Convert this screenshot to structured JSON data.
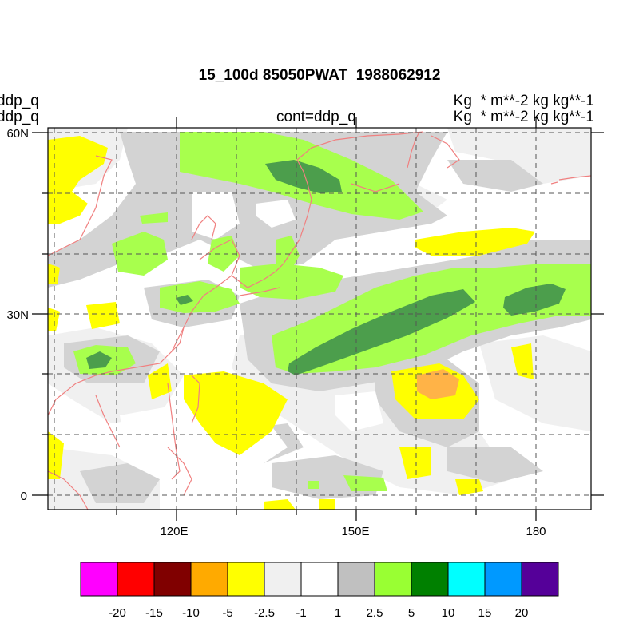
{
  "header": {
    "title": "15_100d 85050PWAT  1988062912",
    "left_line1": "ddp_q",
    "left_line2": "ddp_q",
    "center_label": "cont=ddp_q",
    "right_line1": "Kg  * m**-2 kg kg**-1",
    "right_line2": "Kg  * m**-2 kg kg**-1"
  },
  "map": {
    "lat_labels": [
      "60N",
      "30N",
      "0"
    ],
    "lon_labels": [
      "120E",
      "150E",
      "180"
    ],
    "coastline_color": "#f08080"
  },
  "colorbar": {
    "colors": [
      "#ff00ff",
      "#ff0000",
      "#800000",
      "#ffaa00",
      "#ffff00",
      "#f0f0f0",
      "#ffffff",
      "#c0c0c0",
      "#99ff33",
      "#008000",
      "#00ffff",
      "#0099ff",
      "#550099"
    ],
    "labels": [
      "-20",
      "-15",
      "-10",
      "-5",
      "-2.5",
      "-1",
      "1",
      "2.5",
      "5",
      "10",
      "15",
      "20"
    ]
  }
}
